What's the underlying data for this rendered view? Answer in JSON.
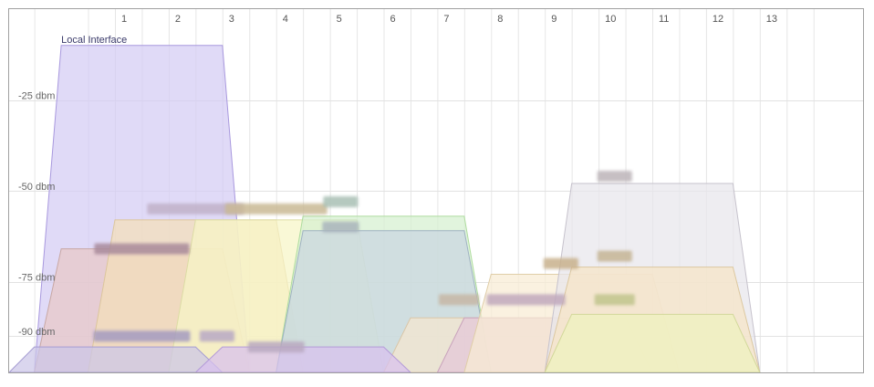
{
  "chart_data": {
    "type": "area",
    "title": "",
    "xlabel": "",
    "ylabel": "",
    "x_categories": [
      "1",
      "2",
      "3",
      "4",
      "5",
      "6",
      "7",
      "8",
      "9",
      "10",
      "11",
      "12",
      "13"
    ],
    "y_ticks": [
      {
        "label": "-25 dbm",
        "value": -25
      },
      {
        "label": "-50 dbm",
        "value": -50
      },
      {
        "label": "-75 dbm",
        "value": -75
      },
      {
        "label": "-90 dbm",
        "value": -90
      }
    ],
    "grid": true,
    "series": [
      {
        "name": "Local Interface",
        "channel": 1.5,
        "width": 3,
        "signal": -10,
        "color": "#d4ccf4",
        "stroke": "#a898de",
        "label_visible": true
      },
      {
        "name": "",
        "channel": 1.5,
        "width": 3,
        "signal": -66,
        "color": "#e7c8c6",
        "stroke": "#c8a8a4"
      },
      {
        "name": "",
        "channel": 2.5,
        "width": 3,
        "signal": -58,
        "color": "#f4dfb8",
        "stroke": "#dcc69c"
      },
      {
        "name": "",
        "channel": 4,
        "width": 3,
        "signal": -58,
        "color": "#f6f5c6",
        "stroke": "#dcdca4"
      },
      {
        "name": "",
        "channel": 6,
        "width": 3,
        "signal": -57,
        "color": "#d6f0d0",
        "stroke": "#aedc9e"
      },
      {
        "name": "",
        "channel": 6,
        "width": 3,
        "signal": -61,
        "color": "#c9d6e0",
        "stroke": "#9fb2c2"
      },
      {
        "name": "",
        "channel": 8,
        "width": 3,
        "signal": -85,
        "color": "#f5e6cf",
        "stroke": "#d9c6a8"
      },
      {
        "name": "",
        "channel": 9,
        "width": 3,
        "signal": -85,
        "color": "#e3c6d8",
        "stroke": "#c9a3bc"
      },
      {
        "name": "",
        "channel": 9.5,
        "width": 3,
        "signal": -73,
        "color": "#f8ecd4",
        "stroke": "#e0cea8"
      },
      {
        "name": "",
        "channel": 11,
        "width": 3,
        "signal": -48,
        "color": "#e8e6ec",
        "stroke": "#c6c2cc"
      },
      {
        "name": "",
        "channel": 11,
        "width": 3,
        "signal": -71,
        "color": "#f6e5c6",
        "stroke": "#dcc8a0"
      },
      {
        "name": "",
        "channel": 11,
        "width": 3,
        "signal": -84,
        "color": "#eff3be",
        "stroke": "#d2d89a"
      },
      {
        "name": "",
        "channel": 1,
        "width": 3,
        "signal": -93,
        "color": "#ccc6e8",
        "stroke": "#a59cd2"
      },
      {
        "name": "",
        "channel": 4.5,
        "width": 3,
        "signal": -93,
        "color": "#d8c0ee",
        "stroke": "#b39ad8"
      }
    ],
    "blurred_labels": [
      {
        "channel": 1.5,
        "signal": -66,
        "w": 104,
        "color": "#a88a9a"
      },
      {
        "channel": 1.5,
        "signal": -90,
        "w": 106,
        "color": "#a39abf"
      },
      {
        "channel": 2.5,
        "signal": -55,
        "w": 106,
        "color": "#c0b0c8"
      },
      {
        "channel": 2.9,
        "signal": -90,
        "w": 38,
        "color": "#b7a8c4"
      },
      {
        "channel": 4,
        "signal": -55,
        "w": 112,
        "color": "#c9b894"
      },
      {
        "channel": 4,
        "signal": -93,
        "w": 62,
        "color": "#b8a8c0"
      },
      {
        "channel": 5.2,
        "signal": -53,
        "w": 38,
        "color": "#a8c0b4"
      },
      {
        "channel": 5.2,
        "signal": -60,
        "w": 40,
        "color": "#a8b4bc"
      },
      {
        "channel": 7.4,
        "signal": -80,
        "w": 44,
        "color": "#c6b6a4"
      },
      {
        "channel": 8.65,
        "signal": -80,
        "w": 86,
        "color": "#c0a8bc"
      },
      {
        "channel": 9.3,
        "signal": -70,
        "w": 38,
        "color": "#c8b08c"
      },
      {
        "channel": 10.3,
        "signal": -46,
        "w": 38,
        "color": "#bcb4b8"
      },
      {
        "channel": 10.3,
        "signal": -68,
        "w": 38,
        "color": "#c4b494"
      },
      {
        "channel": 10.3,
        "signal": -80,
        "w": 44,
        "color": "#c0c48c"
      }
    ]
  }
}
